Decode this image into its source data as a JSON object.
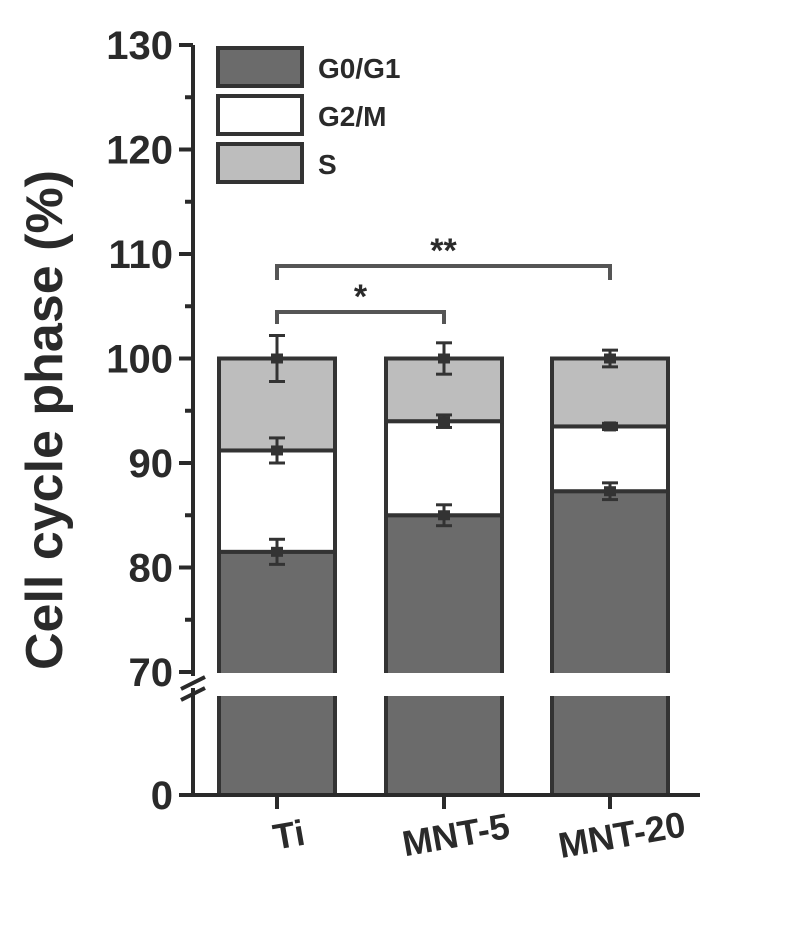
{
  "chart_data": {
    "type": "bar",
    "stacked": true,
    "ylabel": "Cell cycle phase (%)",
    "y_axis_break": [
      0,
      70
    ],
    "ylim": [
      0,
      130
    ],
    "yticks": [
      "0",
      "70",
      "80",
      "90",
      "100",
      "110",
      "120",
      "130"
    ],
    "categories": [
      "Ti",
      "MNT-5",
      "MNT-20"
    ],
    "series": [
      {
        "name": "G0/G1",
        "color": "#6b6b6b",
        "values": [
          81.5,
          85.0,
          87.3
        ],
        "errors": [
          1.2,
          1.0,
          0.8
        ]
      },
      {
        "name": "G2/M",
        "color": "#ffffff",
        "values": [
          9.7,
          9.0,
          6.2
        ],
        "errors": [
          1.2,
          0.6,
          0.3
        ]
      },
      {
        "name": "S",
        "color": "#bdbdbd",
        "values": [
          8.8,
          6.0,
          6.5
        ],
        "errors": [
          2.2,
          1.5,
          0.8
        ]
      }
    ],
    "legend": {
      "position": "top-left",
      "entries": [
        "G0/G1",
        "G2/M",
        "S"
      ]
    },
    "significance": [
      {
        "from": "Ti",
        "to": "MNT-5",
        "label": "*"
      },
      {
        "from": "Ti",
        "to": "MNT-20",
        "label": "**"
      }
    ]
  }
}
